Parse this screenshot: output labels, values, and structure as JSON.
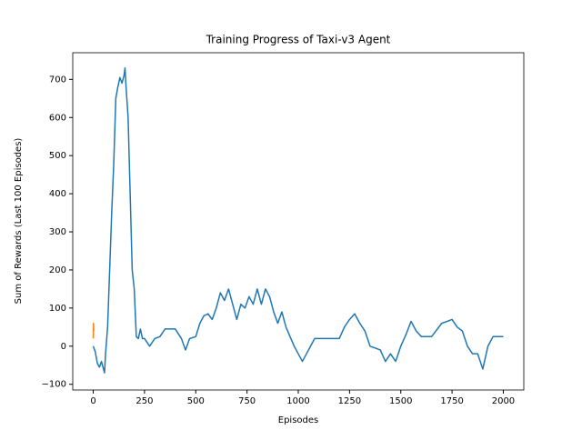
{
  "chart_data": {
    "type": "line",
    "title": "Training Progress of Taxi-v3 Agent",
    "xlabel": "Episodes",
    "ylabel": "Sum of Rewards (Last 100 Episodes)",
    "xlim": [
      -100,
      2100
    ],
    "ylim": [
      -115,
      770
    ],
    "xticks": [
      0,
      250,
      500,
      750,
      1000,
      1250,
      1500,
      1750,
      2000
    ],
    "yticks": [
      {
        "value": -100,
        "label": "−100"
      },
      0,
      100,
      200,
      300,
      400,
      500,
      600,
      700
    ],
    "series": [
      {
        "color": "#1f77b4",
        "x": [
          0,
          10,
          20,
          30,
          40,
          50,
          55,
          60,
          70,
          80,
          90,
          100,
          110,
          120,
          130,
          140,
          150,
          155,
          160,
          170,
          180,
          190,
          200,
          210,
          220,
          230,
          240,
          250,
          275,
          300,
          325,
          350,
          400,
          430,
          450,
          470,
          500,
          520,
          540,
          560,
          580,
          600,
          620,
          640,
          660,
          680,
          700,
          720,
          740,
          760,
          780,
          800,
          820,
          840,
          860,
          880,
          900,
          920,
          940,
          960,
          980,
          1000,
          1020,
          1040,
          1060,
          1080,
          1100,
          1150,
          1200,
          1225,
          1250,
          1275,
          1300,
          1325,
          1350,
          1400,
          1425,
          1450,
          1475,
          1500,
          1525,
          1550,
          1575,
          1600,
          1650,
          1700,
          1725,
          1750,
          1775,
          1800,
          1825,
          1850,
          1875,
          1900,
          1925,
          1950,
          2000
        ],
        "values": [
          0,
          -15,
          -45,
          -55,
          -40,
          -60,
          -70,
          -20,
          50,
          200,
          350,
          480,
          650,
          680,
          705,
          690,
          710,
          730,
          680,
          600,
          400,
          200,
          150,
          25,
          20,
          45,
          20,
          20,
          0,
          20,
          25,
          45,
          45,
          20,
          -10,
          20,
          25,
          60,
          80,
          85,
          70,
          100,
          140,
          120,
          150,
          110,
          70,
          110,
          100,
          130,
          110,
          150,
          110,
          150,
          130,
          90,
          60,
          90,
          50,
          25,
          0,
          -20,
          -40,
          -20,
          0,
          20,
          20,
          20,
          20,
          50,
          70,
          85,
          60,
          40,
          0,
          -10,
          -40,
          -20,
          -40,
          0,
          30,
          65,
          40,
          25,
          25,
          60,
          65,
          70,
          50,
          40,
          0,
          -20,
          -20,
          -60,
          0,
          25,
          25
        ]
      },
      {
        "color": "#ff7f0e",
        "x": [
          0,
          1,
          2
        ],
        "values": [
          20,
          60,
          40
        ]
      }
    ]
  }
}
